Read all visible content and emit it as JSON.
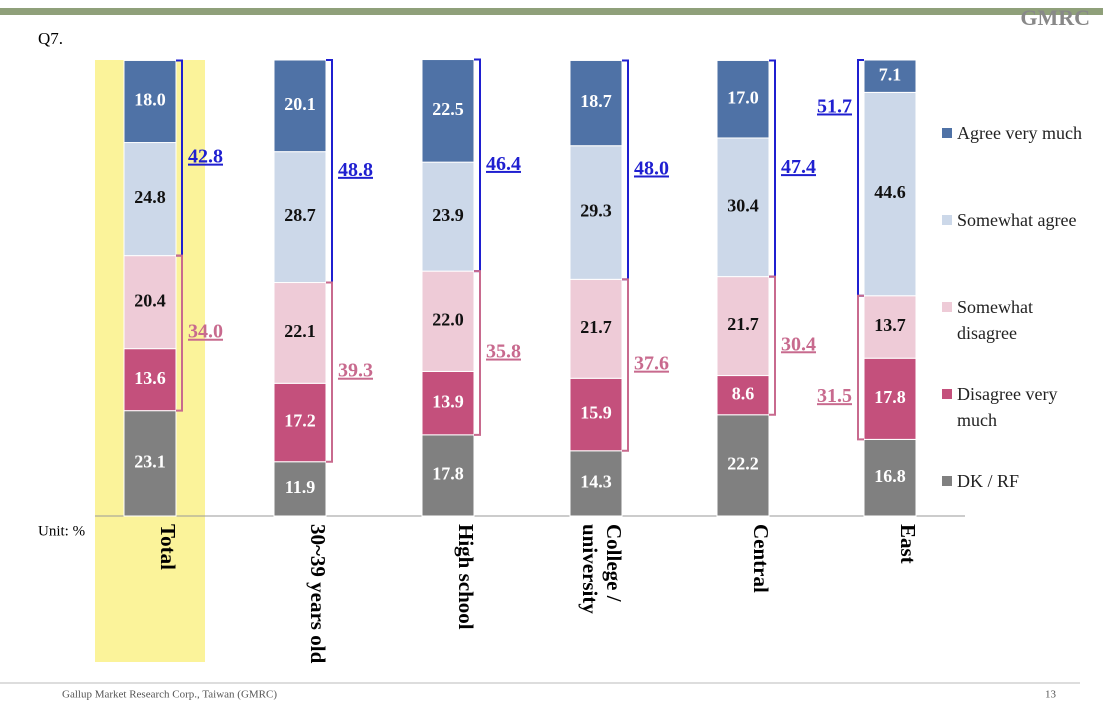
{
  "page": {
    "question": "Q7.",
    "unit": "Unit: %",
    "logo": "GMRC",
    "footer": "Gallup Market Research Corp., Taiwan (GMRC)",
    "page_number": "13"
  },
  "chart_data": {
    "type": "stacked_bar",
    "categories": [
      "Total",
      "30~39 years old",
      "High school",
      "College / university",
      "Central",
      "East"
    ],
    "ylim": [
      0,
      100
    ],
    "series": [
      {
        "name": "Agree very much",
        "color": "#4f72a6",
        "values": [
          18.0,
          20.1,
          22.5,
          18.7,
          17.0,
          7.1
        ],
        "value_labels": [
          "18.0",
          "20.1",
          "22.5",
          "18.7",
          "17.0",
          "7.1"
        ]
      },
      {
        "name": "Somewhat agree",
        "color": "#ccd8e9",
        "values": [
          24.8,
          28.7,
          23.9,
          29.3,
          30.4,
          44.6
        ],
        "value_labels": [
          "24.8",
          "28.7",
          "23.9",
          "29.3",
          "30.4",
          "44.6"
        ]
      },
      {
        "name": "Somewhat disagree",
        "color": "#eecbd7",
        "values": [
          20.4,
          22.1,
          22.0,
          21.7,
          21.7,
          13.7
        ],
        "value_labels": [
          "20.4",
          "22.1",
          "22.0",
          "21.7",
          "21.7",
          "13.7"
        ]
      },
      {
        "name": "Disagree very much",
        "color": "#c4507c",
        "values": [
          13.6,
          17.2,
          13.9,
          15.9,
          8.6,
          17.8
        ],
        "value_labels": [
          "13.6",
          "17.2",
          "13.9",
          "15.9",
          "8.6",
          "17.8"
        ]
      },
      {
        "name": "DK / RF",
        "color": "#808080",
        "values": [
          23.1,
          11.9,
          17.8,
          14.3,
          22.2,
          16.8
        ],
        "value_labels": [
          "23.1",
          "11.9",
          "17.8",
          "14.3",
          "22.2",
          "16.8"
        ]
      }
    ],
    "agree_net": {
      "color": "#1f1fd0",
      "values": [
        42.8,
        48.8,
        46.4,
        48.0,
        47.4,
        51.7
      ],
      "value_labels": [
        "42.8",
        "48.8",
        "46.4",
        "48.0",
        "47.4",
        "51.7"
      ]
    },
    "disagree_net": {
      "color": "#c86a8e",
      "values": [
        34.0,
        39.3,
        35.8,
        37.6,
        30.4,
        31.5
      ],
      "value_labels": [
        "34.0",
        "39.3",
        "35.8",
        "37.6",
        "30.4",
        "31.5"
      ]
    },
    "highlight": {
      "category": 0,
      "color": "#fbf39a"
    }
  }
}
